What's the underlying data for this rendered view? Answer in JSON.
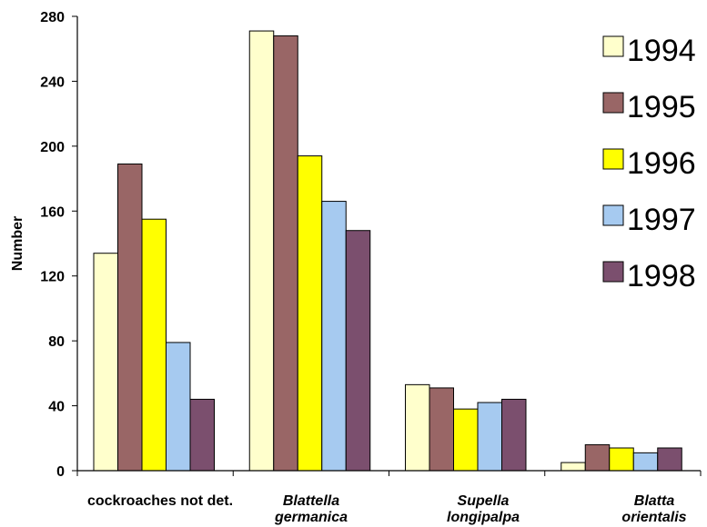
{
  "chart_data": {
    "type": "bar",
    "title": "",
    "xlabel": "",
    "ylabel": "Number",
    "ylim": [
      0,
      280
    ],
    "yticks": [
      0,
      40,
      80,
      120,
      160,
      200,
      240,
      280
    ],
    "grid": false,
    "legend_position": "right",
    "categories": [
      {
        "lines": [
          "cockroaches not det."
        ],
        "italic": false
      },
      {
        "lines": [
          "Blattella",
          "germanica"
        ],
        "italic": true
      },
      {
        "lines": [
          "Supella",
          "longipalpa"
        ],
        "italic": true
      },
      {
        "lines": [
          "Blatta",
          "orientalis"
        ],
        "italic": true
      }
    ],
    "series": [
      {
        "name": "1994",
        "color": "#FFFFCC",
        "values": [
          134,
          271,
          53,
          5
        ]
      },
      {
        "name": "1995",
        "color": "#996666",
        "values": [
          189,
          268,
          51,
          16
        ]
      },
      {
        "name": "1996",
        "color": "#FFFF00",
        "values": [
          155,
          194,
          38,
          14
        ]
      },
      {
        "name": "1997",
        "color": "#A6CAF0",
        "values": [
          79,
          166,
          42,
          11
        ]
      },
      {
        "name": "1998",
        "color": "#7B4F6E",
        "values": [
          44,
          148,
          44,
          14
        ]
      }
    ]
  }
}
